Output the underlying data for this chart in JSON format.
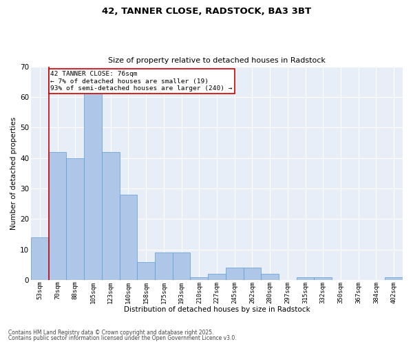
{
  "title1": "42, TANNER CLOSE, RADSTOCK, BA3 3BT",
  "title2": "Size of property relative to detached houses in Radstock",
  "xlabel": "Distribution of detached houses by size in Radstock",
  "ylabel": "Number of detached properties",
  "bins": [
    "53sqm",
    "70sqm",
    "88sqm",
    "105sqm",
    "123sqm",
    "140sqm",
    "158sqm",
    "175sqm",
    "193sqm",
    "210sqm",
    "227sqm",
    "245sqm",
    "262sqm",
    "280sqm",
    "297sqm",
    "315sqm",
    "332sqm",
    "350sqm",
    "367sqm",
    "384sqm",
    "402sqm"
  ],
  "values": [
    14,
    42,
    40,
    63,
    42,
    28,
    6,
    9,
    9,
    1,
    2,
    4,
    4,
    2,
    0,
    1,
    1,
    0,
    0,
    0,
    1
  ],
  "bar_color": "#aec6e8",
  "bar_edge_color": "#5b9bd5",
  "red_line_x": 0.5,
  "annotation_text": "42 TANNER CLOSE: 76sqm\n← 7% of detached houses are smaller (19)\n93% of semi-detached houses are larger (240) →",
  "annotation_box_color": "#ffffff",
  "annotation_border_color": "#cc0000",
  "ylim": [
    0,
    70
  ],
  "yticks": [
    0,
    10,
    20,
    30,
    40,
    50,
    60,
    70
  ],
  "bg_color": "#e8eef8",
  "footer1": "Contains HM Land Registry data © Crown copyright and database right 2025.",
  "footer2": "Contains public sector information licensed under the Open Government Licence v3.0."
}
